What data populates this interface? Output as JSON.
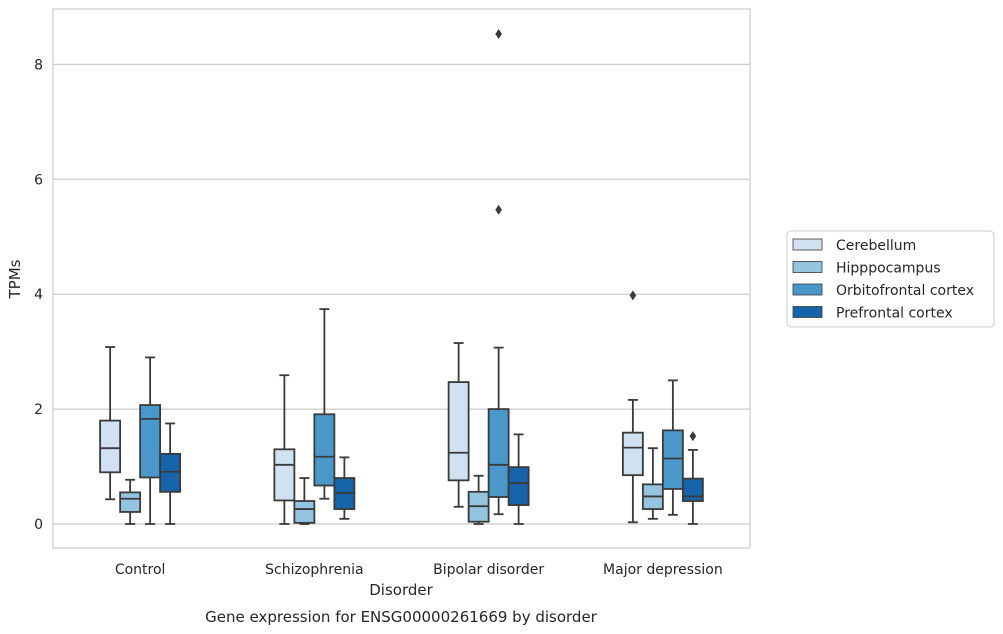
{
  "chart_data": {
    "type": "box",
    "title": "",
    "caption": "Gene expression for ENSG00000261669 by disorder",
    "xlabel": "Disorder",
    "ylabel": "TPMs",
    "ylim": [
      -0.4,
      9.0
    ],
    "yticks": [
      0,
      2,
      4,
      6,
      8
    ],
    "grid": "horizontal",
    "legend_position": "right",
    "categories": [
      "Control",
      "Schizophrenia",
      "Bipolar disorder",
      "Major depression"
    ],
    "series": [
      {
        "name": "Cerebellum",
        "color": "#d0e1f2",
        "boxes": [
          {
            "whisker_low": 0.43,
            "q1": 0.9,
            "median": 1.32,
            "q3": 1.8,
            "whisker_high": 3.08,
            "outliers": []
          },
          {
            "whisker_low": 0.0,
            "q1": 0.41,
            "median": 1.03,
            "q3": 1.3,
            "whisker_high": 2.59,
            "outliers": []
          },
          {
            "whisker_low": 0.3,
            "q1": 0.76,
            "median": 1.24,
            "q3": 2.47,
            "whisker_high": 3.15,
            "outliers": []
          },
          {
            "whisker_low": 0.03,
            "q1": 0.85,
            "median": 1.33,
            "q3": 1.59,
            "whisker_high": 2.16,
            "outliers": [
              3.98
            ]
          }
        ]
      },
      {
        "name": "Hipppocampus",
        "color": "#94c4df",
        "boxes": [
          {
            "whisker_low": 0.0,
            "q1": 0.21,
            "median": 0.44,
            "q3": 0.55,
            "whisker_high": 0.77,
            "outliers": []
          },
          {
            "whisker_low": 0.0,
            "q1": 0.02,
            "median": 0.26,
            "q3": 0.4,
            "whisker_high": 0.8,
            "outliers": []
          },
          {
            "whisker_low": 0.0,
            "q1": 0.04,
            "median": 0.31,
            "q3": 0.56,
            "whisker_high": 0.84,
            "outliers": []
          },
          {
            "whisker_low": 0.09,
            "q1": 0.26,
            "median": 0.48,
            "q3": 0.69,
            "whisker_high": 1.32,
            "outliers": []
          }
        ]
      },
      {
        "name": "Orbitofrontal cortex",
        "color": "#4a98c9",
        "boxes": [
          {
            "whisker_low": 0.0,
            "q1": 0.81,
            "median": 1.83,
            "q3": 2.07,
            "whisker_high": 2.9,
            "outliers": []
          },
          {
            "whisker_low": 0.44,
            "q1": 0.67,
            "median": 1.17,
            "q3": 1.91,
            "whisker_high": 3.74,
            "outliers": []
          },
          {
            "whisker_low": 0.17,
            "q1": 0.47,
            "median": 1.03,
            "q3": 2.0,
            "whisker_high": 3.07,
            "outliers": [
              5.47,
              8.53
            ]
          },
          {
            "whisker_low": 0.16,
            "q1": 0.61,
            "median": 1.14,
            "q3": 1.63,
            "whisker_high": 2.5,
            "outliers": []
          }
        ]
      },
      {
        "name": "Prefrontal cortex",
        "color": "#1764ab",
        "boxes": [
          {
            "whisker_low": 0.0,
            "q1": 0.56,
            "median": 0.91,
            "q3": 1.22,
            "whisker_high": 1.75,
            "outliers": []
          },
          {
            "whisker_low": 0.09,
            "q1": 0.26,
            "median": 0.54,
            "q3": 0.8,
            "whisker_high": 1.16,
            "outliers": []
          },
          {
            "whisker_low": 0.0,
            "q1": 0.33,
            "median": 0.71,
            "q3": 0.99,
            "whisker_high": 1.56,
            "outliers": []
          },
          {
            "whisker_low": 0.0,
            "q1": 0.4,
            "median": 0.48,
            "q3": 0.79,
            "whisker_high": 1.29,
            "outliers": [
              1.53
            ]
          }
        ]
      }
    ]
  }
}
